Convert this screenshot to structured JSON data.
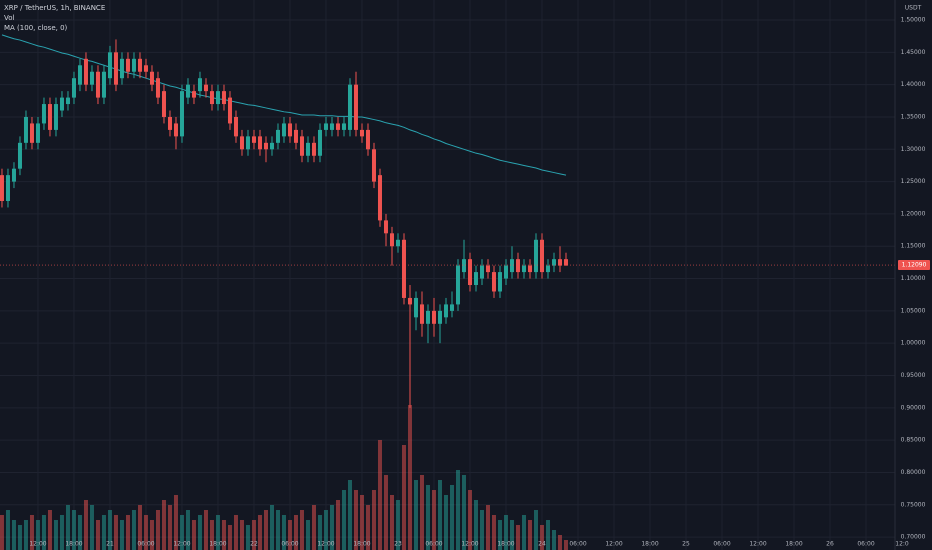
{
  "chart_data": {
    "type": "candlestick",
    "title": "XRP / TetherUS, 1h, BINANCE",
    "indicators": [
      "Vol",
      "MA (100, close, 0)"
    ],
    "price_axis_label": "USDT",
    "up_color": "#26a69a",
    "down_color": "#ef5350",
    "ma_color": "#2aa3b0",
    "grid": true,
    "xlim": [
      -0.33,
      155
    ],
    "ylim": [
      0.68,
      1.531
    ],
    "vlim": [
      0,
      30
    ],
    "xticks": [
      {
        "value": 6,
        "label": "12:00"
      },
      {
        "value": 12,
        "label": "18:00"
      },
      {
        "value": 18,
        "label": "21"
      },
      {
        "value": 24,
        "label": "06:00"
      },
      {
        "value": 30,
        "label": "12:00"
      },
      {
        "value": 36,
        "label": "18:00"
      },
      {
        "value": 42,
        "label": "22"
      },
      {
        "value": 48,
        "label": "06:00"
      },
      {
        "value": 54,
        "label": "12:00"
      },
      {
        "value": 60,
        "label": "18:00"
      },
      {
        "value": 66,
        "label": "23"
      },
      {
        "value": 72,
        "label": "06:00"
      },
      {
        "value": 78,
        "label": "12:00"
      },
      {
        "value": 84,
        "label": "18:00"
      },
      {
        "value": 90,
        "label": "24"
      },
      {
        "value": 96,
        "label": "06:00"
      },
      {
        "value": 102,
        "label": "12:00"
      },
      {
        "value": 108,
        "label": "18:00"
      },
      {
        "value": 114,
        "label": "25"
      },
      {
        "value": 120,
        "label": "06:00"
      },
      {
        "value": 126,
        "label": "12:00"
      },
      {
        "value": 132,
        "label": "18:00"
      },
      {
        "value": 138,
        "label": "26"
      },
      {
        "value": 144,
        "label": "06:00"
      },
      {
        "value": 150,
        "label": "12:0"
      }
    ],
    "yticks": [
      {
        "value": 0.7,
        "label": "0.70000"
      },
      {
        "value": 0.75,
        "label": "0.75000"
      },
      {
        "value": 0.8,
        "label": "0.80000"
      },
      {
        "value": 0.85,
        "label": "0.85000"
      },
      {
        "value": 0.9,
        "label": "0.90000"
      },
      {
        "value": 0.95,
        "label": "0.95000"
      },
      {
        "value": 1.0,
        "label": "1.00000"
      },
      {
        "value": 1.05,
        "label": "1.05000"
      },
      {
        "value": 1.1,
        "label": "1.10000"
      },
      {
        "value": 1.15,
        "label": "1.15000"
      },
      {
        "value": 1.2,
        "label": "1.20000"
      },
      {
        "value": 1.25,
        "label": "1.25000"
      },
      {
        "value": 1.3,
        "label": "1.30000"
      },
      {
        "value": 1.35,
        "label": "1.35000"
      },
      {
        "value": 1.4,
        "label": "1.40000"
      },
      {
        "value": 1.45,
        "label": "1.45000"
      },
      {
        "value": 1.5,
        "label": "1.50000"
      }
    ],
    "last_price": {
      "value": 1.1209,
      "label": "1.12090"
    },
    "open": [
      1.26,
      1.22,
      1.25,
      1.27,
      1.31,
      1.34,
      1.31,
      1.34,
      1.37,
      1.33,
      1.36,
      1.37,
      1.38,
      1.4,
      1.44,
      1.4,
      1.42,
      1.38,
      1.41,
      1.45,
      1.41,
      1.44,
      1.42,
      1.44,
      1.43,
      1.42,
      1.41,
      1.39,
      1.35,
      1.34,
      1.32,
      1.38,
      1.39,
      1.39,
      1.4,
      1.39,
      1.37,
      1.39,
      1.38,
      1.35,
      1.32,
      1.3,
      1.32,
      1.32,
      1.31,
      1.3,
      1.31,
      1.32,
      1.34,
      1.33,
      1.32,
      1.29,
      1.31,
      1.29,
      1.33,
      1.33,
      1.34,
      1.33,
      1.33,
      1.4,
      1.33,
      1.33,
      1.3,
      1.26,
      1.19,
      1.17,
      1.15,
      1.16,
      1.07,
      1.04,
      1.06,
      1.03,
      1.05,
      1.03,
      1.04,
      1.05,
      1.06,
      1.11,
      1.13,
      1.09,
      1.1,
      1.12,
      1.11,
      1.08,
      1.1,
      1.11,
      1.13,
      1.11,
      1.12,
      1.11,
      1.16,
      1.11,
      1.12,
      1.13,
      1.13
    ],
    "high": [
      1.27,
      1.27,
      1.28,
      1.32,
      1.36,
      1.35,
      1.35,
      1.38,
      1.38,
      1.38,
      1.39,
      1.39,
      1.42,
      1.44,
      1.45,
      1.43,
      1.43,
      1.43,
      1.46,
      1.47,
      1.45,
      1.45,
      1.45,
      1.45,
      1.44,
      1.43,
      1.42,
      1.4,
      1.36,
      1.35,
      1.4,
      1.41,
      1.4,
      1.42,
      1.41,
      1.4,
      1.4,
      1.4,
      1.39,
      1.36,
      1.33,
      1.33,
      1.33,
      1.33,
      1.32,
      1.32,
      1.34,
      1.35,
      1.35,
      1.34,
      1.33,
      1.32,
      1.32,
      1.34,
      1.35,
      1.35,
      1.35,
      1.35,
      1.41,
      1.42,
      1.34,
      1.34,
      1.31,
      1.27,
      1.2,
      1.18,
      1.17,
      1.17,
      1.09,
      1.08,
      1.08,
      1.06,
      1.07,
      1.06,
      1.07,
      1.08,
      1.13,
      1.16,
      1.14,
      1.12,
      1.13,
      1.13,
      1.12,
      1.12,
      1.13,
      1.15,
      1.14,
      1.13,
      1.13,
      1.17,
      1.17,
      1.13,
      1.14,
      1.15,
      1.14
    ],
    "low": [
      1.21,
      1.21,
      1.24,
      1.26,
      1.3,
      1.3,
      1.3,
      1.33,
      1.32,
      1.32,
      1.35,
      1.36,
      1.37,
      1.39,
      1.39,
      1.39,
      1.37,
      1.37,
      1.4,
      1.39,
      1.4,
      1.41,
      1.41,
      1.41,
      1.41,
      1.39,
      1.37,
      1.34,
      1.32,
      1.3,
      1.31,
      1.37,
      1.37,
      1.38,
      1.38,
      1.36,
      1.36,
      1.36,
      1.33,
      1.31,
      1.29,
      1.29,
      1.3,
      1.29,
      1.28,
      1.29,
      1.3,
      1.31,
      1.31,
      1.3,
      1.28,
      1.28,
      1.28,
      1.28,
      1.32,
      1.32,
      1.32,
      1.32,
      1.32,
      1.32,
      1.31,
      1.29,
      1.24,
      1.18,
      1.15,
      1.12,
      1.14,
      1.06,
      0.9,
      1.02,
      1.01,
      1.0,
      1.01,
      1.0,
      1.03,
      1.04,
      1.05,
      1.1,
      1.08,
      1.08,
      1.09,
      1.1,
      1.07,
      1.07,
      1.09,
      1.1,
      1.1,
      1.1,
      1.1,
      1.1,
      1.1,
      1.1,
      1.11,
      1.11,
      1.12
    ],
    "close": [
      1.22,
      1.26,
      1.27,
      1.31,
      1.35,
      1.31,
      1.34,
      1.37,
      1.33,
      1.37,
      1.38,
      1.38,
      1.41,
      1.43,
      1.4,
      1.42,
      1.38,
      1.42,
      1.45,
      1.4,
      1.44,
      1.42,
      1.44,
      1.42,
      1.42,
      1.4,
      1.38,
      1.35,
      1.33,
      1.32,
      1.39,
      1.4,
      1.38,
      1.41,
      1.39,
      1.37,
      1.39,
      1.37,
      1.34,
      1.32,
      1.3,
      1.32,
      1.31,
      1.3,
      1.3,
      1.31,
      1.33,
      1.34,
      1.32,
      1.31,
      1.29,
      1.31,
      1.29,
      1.33,
      1.34,
      1.34,
      1.33,
      1.34,
      1.4,
      1.33,
      1.32,
      1.3,
      1.25,
      1.19,
      1.17,
      1.15,
      1.16,
      1.07,
      1.06,
      1.07,
      1.03,
      1.05,
      1.03,
      1.05,
      1.06,
      1.06,
      1.12,
      1.13,
      1.09,
      1.11,
      1.12,
      1.11,
      1.08,
      1.11,
      1.12,
      1.13,
      1.11,
      1.12,
      1.11,
      1.16,
      1.11,
      1.12,
      1.13,
      1.12,
      1.12
    ],
    "volume": [
      7,
      8,
      6,
      5,
      6,
      7,
      6,
      7,
      8,
      6,
      7,
      9,
      8,
      7,
      10,
      9,
      6,
      7,
      8,
      7,
      6,
      7,
      8,
      9,
      7,
      6,
      8,
      10,
      9,
      11,
      7,
      8,
      6,
      7,
      8,
      6,
      7,
      6,
      5,
      7,
      6,
      5,
      6,
      7,
      8,
      9,
      8,
      7,
      6,
      7,
      8,
      6,
      9,
      7,
      8,
      9,
      10,
      12,
      14,
      12,
      11,
      9,
      12,
      22,
      15,
      11,
      10,
      21,
      29,
      14,
      15,
      13,
      12,
      14,
      11,
      13,
      16,
      15,
      12,
      10,
      8,
      9,
      7,
      6,
      7,
      6,
      5,
      7,
      6,
      8,
      5,
      6,
      4,
      3,
      2
    ],
    "ma": [
      1.477,
      1.474,
      1.471,
      1.469,
      1.466,
      1.463,
      1.46,
      1.458,
      1.455,
      1.452,
      1.449,
      1.447,
      1.444,
      1.441,
      1.438,
      1.436,
      1.433,
      1.43,
      1.427,
      1.424,
      1.421,
      1.418,
      1.416,
      1.413,
      1.41,
      1.407,
      1.404,
      1.401,
      1.398,
      1.396,
      1.393,
      1.39,
      1.387,
      1.384,
      1.382,
      1.38,
      1.378,
      1.377,
      1.375,
      1.373,
      1.371,
      1.369,
      1.368,
      1.366,
      1.364,
      1.362,
      1.36,
      1.358,
      1.357,
      1.355,
      1.353,
      1.353,
      1.353,
      1.352,
      1.352,
      1.352,
      1.351,
      1.351,
      1.351,
      1.35,
      1.35,
      1.348,
      1.346,
      1.344,
      1.341,
      1.339,
      1.337,
      1.334,
      1.33,
      1.327,
      1.323,
      1.32,
      1.316,
      1.313,
      1.309,
      1.306,
      1.303,
      1.3,
      1.297,
      1.294,
      1.292,
      1.289,
      1.286,
      1.283,
      1.281,
      1.279,
      1.277,
      1.275,
      1.273,
      1.271,
      1.268,
      1.266,
      1.264,
      1.262,
      1.26
    ]
  }
}
